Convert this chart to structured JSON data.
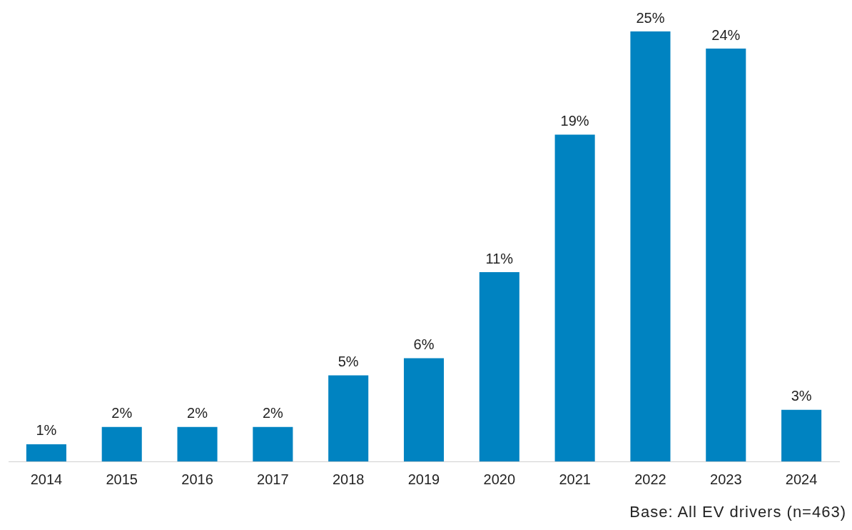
{
  "chart_data": {
    "type": "bar",
    "categories": [
      "2014",
      "2015",
      "2016",
      "2017",
      "2018",
      "2019",
      "2020",
      "2021",
      "2022",
      "2023",
      "2024"
    ],
    "values": [
      1,
      2,
      2,
      2,
      5,
      6,
      11,
      19,
      25,
      24,
      3
    ],
    "value_labels": [
      "1%",
      "2%",
      "2%",
      "2%",
      "5%",
      "6%",
      "11%",
      "19%",
      "25%",
      "24%",
      "3%"
    ],
    "color": "#0083c1",
    "grid": false,
    "legend": false,
    "annotations": [
      "Base: All EV drivers (n=463)"
    ]
  }
}
